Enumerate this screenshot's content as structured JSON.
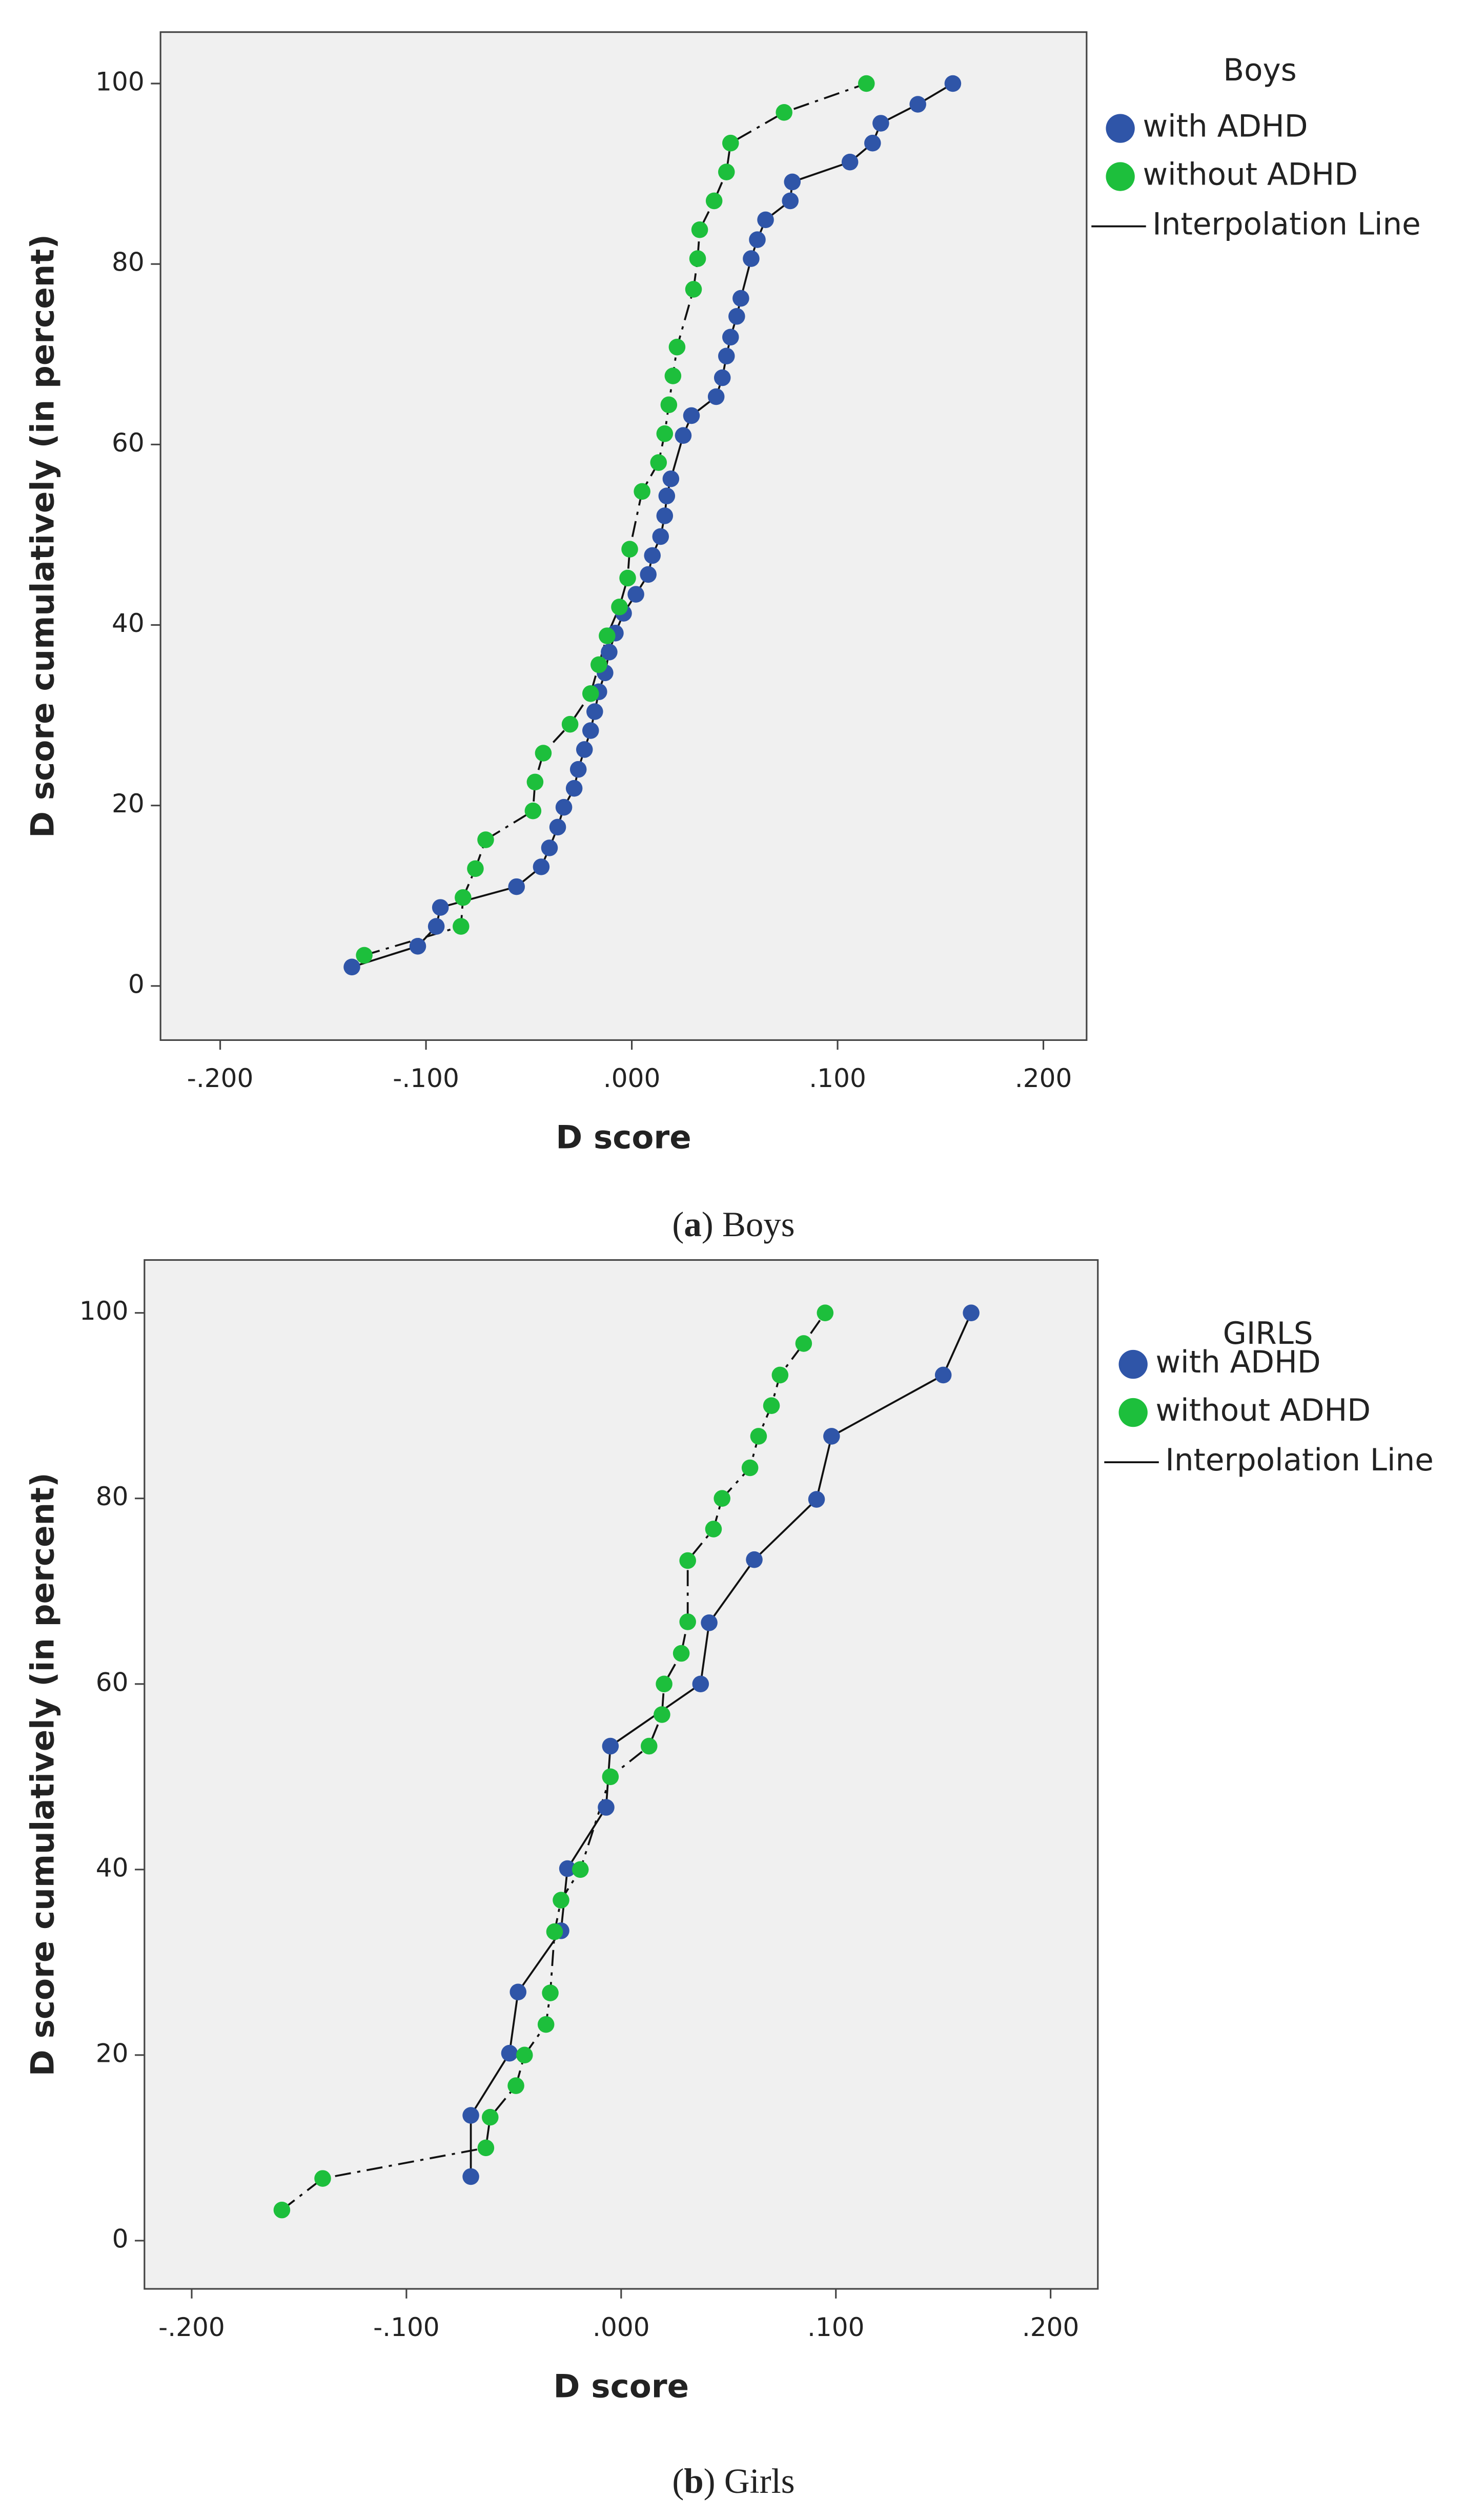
{
  "chart_data": [
    {
      "type": "scatter",
      "legend_title": "Boys",
      "line_legend": "Interpolation Line",
      "x_label": "D score",
      "y_label": "D score cumulatively (in percent)",
      "caption_parts": [
        "(",
        "a",
        ")",
        " Boys"
      ],
      "xlim": [
        -0.229,
        0.221
      ],
      "ylim": [
        -6,
        105.7
      ],
      "xticks": [
        {
          "value": -0.2,
          "label": "-.200"
        },
        {
          "value": -0.1,
          "label": "-.100"
        },
        {
          "value": 0,
          "label": ".000"
        },
        {
          "value": 0.1,
          "label": ".100"
        },
        {
          "value": 0.2,
          "label": ".200"
        }
      ],
      "yticks": [
        0,
        20,
        40,
        60,
        80,
        100
      ],
      "series": [
        {
          "name": "with ADHD",
          "color": "#2f55a8",
          "line_style": "solid",
          "x": [
            -0.136,
            -0.104,
            -0.095,
            -0.093,
            -0.056,
            -0.044,
            -0.04,
            -0.036,
            -0.033,
            -0.028,
            -0.026,
            -0.023,
            -0.02,
            -0.018,
            -0.016,
            -0.013,
            -0.011,
            -0.008,
            -0.004,
            0.002,
            0.008,
            0.01,
            0.014,
            0.016,
            0.017,
            0.019,
            0.025,
            0.029,
            0.041,
            0.044,
            0.046,
            0.048,
            0.051,
            0.053,
            0.058,
            0.061,
            0.065,
            0.077,
            0.078,
            0.106,
            0.117,
            0.121,
            0.139,
            0.156
          ],
          "values": [
            2.1,
            4.4,
            6.6,
            8.7,
            11.0,
            13.2,
            15.3,
            17.6,
            19.8,
            21.9,
            24.0,
            26.2,
            28.3,
            30.4,
            32.6,
            34.7,
            37.0,
            39.1,
            41.3,
            43.4,
            45.6,
            47.7,
            49.8,
            52.1,
            54.3,
            56.2,
            61.0,
            63.2,
            65.3,
            67.4,
            69.8,
            71.9,
            74.2,
            76.2,
            80.6,
            82.7,
            84.9,
            87.0,
            89.1,
            91.3,
            93.4,
            95.6,
            97.7,
            100
          ]
        },
        {
          "name": "without ADHD",
          "color": "#1dbf3c",
          "line_style": "dashdot",
          "x": [
            -0.13,
            -0.083,
            -0.082,
            -0.076,
            -0.071,
            -0.048,
            -0.047,
            -0.043,
            -0.03,
            -0.02,
            -0.016,
            -0.012,
            -0.006,
            -0.002,
            -0.001,
            0.005,
            0.013,
            0.016,
            0.018,
            0.02,
            0.022,
            0.03,
            0.032,
            0.033,
            0.04,
            0.046,
            0.048,
            0.074,
            0.114
          ],
          "values": [
            3.4,
            6.6,
            9.8,
            13.0,
            16.2,
            19.4,
            22.6,
            25.8,
            29.0,
            32.4,
            35.6,
            38.8,
            42.0,
            45.2,
            48.4,
            54.8,
            58.0,
            61.2,
            64.4,
            67.6,
            70.8,
            77.2,
            80.6,
            83.8,
            87.0,
            90.2,
            93.4,
            96.8,
            100
          ]
        }
      ]
    },
    {
      "type": "scatter",
      "legend_title": "GIRLS",
      "line_legend": "Interpolation Line",
      "x_label": "D score",
      "y_label": "D score cumulatively (in percent)",
      "caption_parts": [
        "(",
        "b",
        ")",
        " Girls"
      ],
      "xlim": [
        -0.222,
        0.222
      ],
      "ylim": [
        -5.2,
        105.7
      ],
      "xticks": [
        {
          "value": -0.2,
          "label": "-.200"
        },
        {
          "value": -0.1,
          "label": "-.100"
        },
        {
          "value": 0,
          "label": ".000"
        },
        {
          "value": 0.1,
          "label": ".100"
        },
        {
          "value": 0.2,
          "label": ".200"
        }
      ],
      "yticks": [
        0,
        20,
        40,
        60,
        80,
        100
      ],
      "series": [
        {
          "name": "with ADHD",
          "color": "#2f55a8",
          "line_style": "solid",
          "x": [
            -0.07,
            -0.07,
            -0.052,
            -0.048,
            -0.028,
            -0.025,
            -0.007,
            -0.005,
            0.037,
            0.041,
            0.062,
            0.091,
            0.098,
            0.15,
            0.163
          ],
          "values": [
            6.9,
            13.5,
            20.2,
            26.8,
            33.4,
            40.1,
            46.7,
            53.3,
            60.0,
            66.6,
            73.4,
            79.9,
            86.7,
            93.3,
            100
          ]
        },
        {
          "name": "without ADHD",
          "color": "#1dbf3c",
          "line_style": "dashdot",
          "x": [
            -0.158,
            -0.139,
            -0.063,
            -0.061,
            -0.049,
            -0.045,
            -0.035,
            -0.033,
            -0.031,
            -0.028,
            -0.019,
            -0.005,
            0.013,
            0.019,
            0.02,
            0.028,
            0.031,
            0.031,
            0.043,
            0.047,
            0.06,
            0.064,
            0.07,
            0.074,
            0.085,
            0.095
          ],
          "values": [
            3.3,
            6.7,
            10,
            13.3,
            16.7,
            20,
            23.3,
            26.7,
            33.3,
            36.7,
            40,
            50,
            53.3,
            56.7,
            60,
            63.3,
            66.7,
            73.3,
            76.7,
            80,
            83.3,
            86.7,
            90,
            93.3,
            96.7,
            100
          ]
        }
      ]
    }
  ]
}
